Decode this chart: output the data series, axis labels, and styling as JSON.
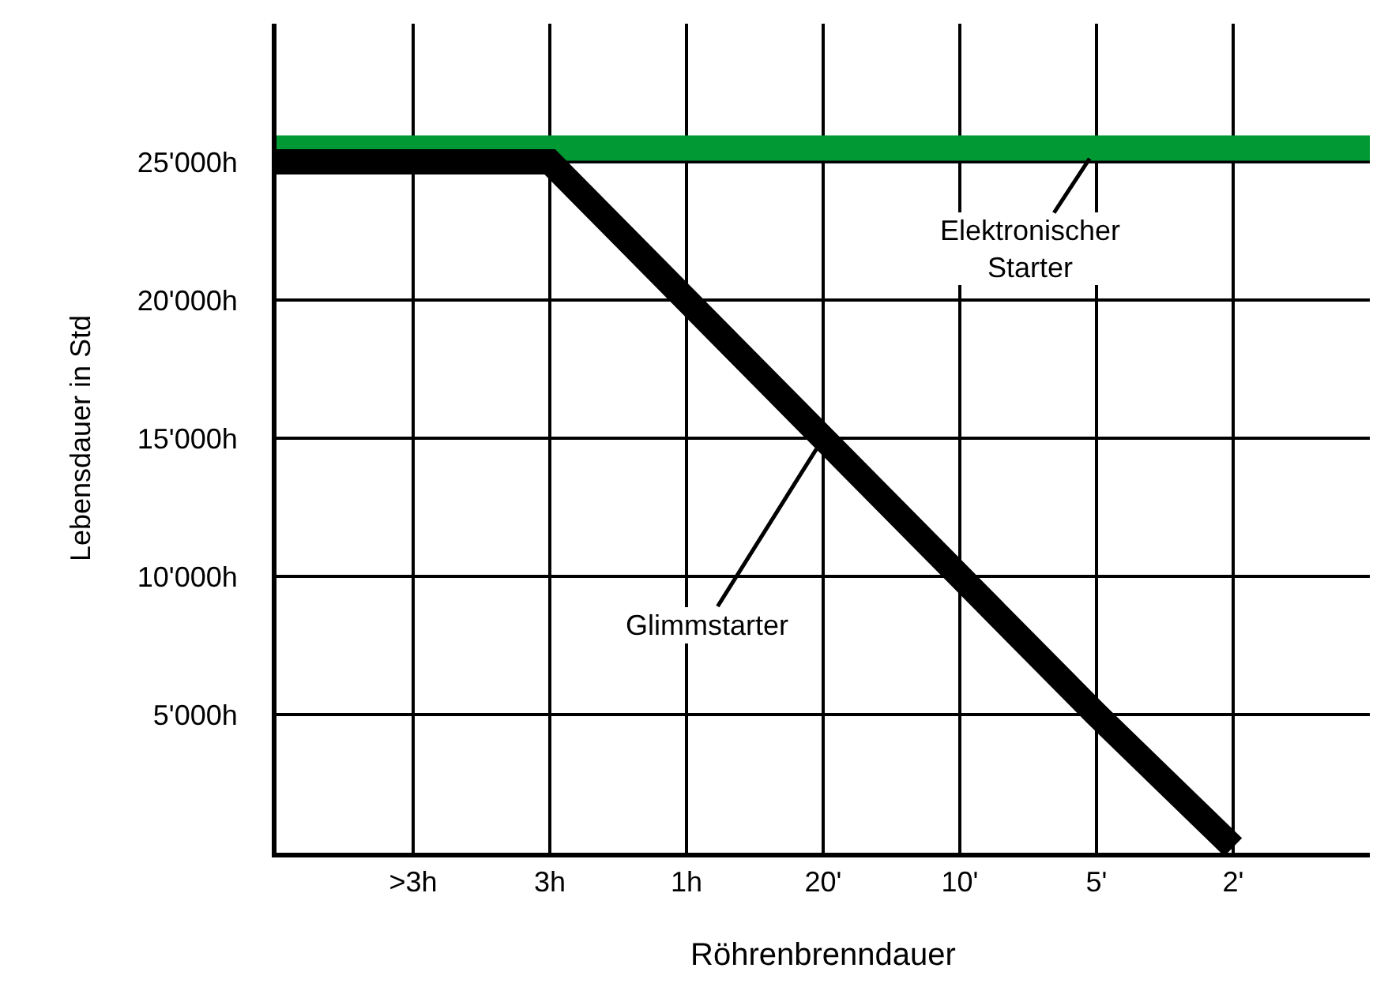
{
  "chart_data": {
    "type": "line",
    "xlabel": "Röhrenbrenndauer",
    "ylabel": "Lebensdauer in Std",
    "categories": [
      null,
      ">3h",
      "3h",
      "1h",
      "20'",
      "10'",
      "5'",
      "2'",
      null
    ],
    "ylim": [
      0,
      30000
    ],
    "yticks": [
      {
        "value": 5000,
        "label": "5'000h"
      },
      {
        "value": 10000,
        "label": "10'000h"
      },
      {
        "value": 15000,
        "label": "15'000h"
      },
      {
        "value": 20000,
        "label": "20'000h"
      },
      {
        "value": 25000,
        "label": "25'000h"
      }
    ],
    "series": [
      {
        "color": "#009933",
        "values": [
          25500,
          25500,
          25500,
          25500,
          25500,
          25500,
          25500,
          25500,
          25500
        ]
      },
      {
        "color": "#000000",
        "values": [
          25000,
          25000,
          25000,
          20000,
          15000,
          10000,
          5000,
          200,
          null
        ]
      }
    ],
    "annotations": [
      {
        "text": "Elektronischer\nStarter",
        "x": "5'",
        "y": 25500
      },
      {
        "text": "Glimmstarter",
        "x": "20'",
        "y": 15000
      }
    ],
    "grid": true,
    "marker": "none",
    "line_style": "solid"
  }
}
